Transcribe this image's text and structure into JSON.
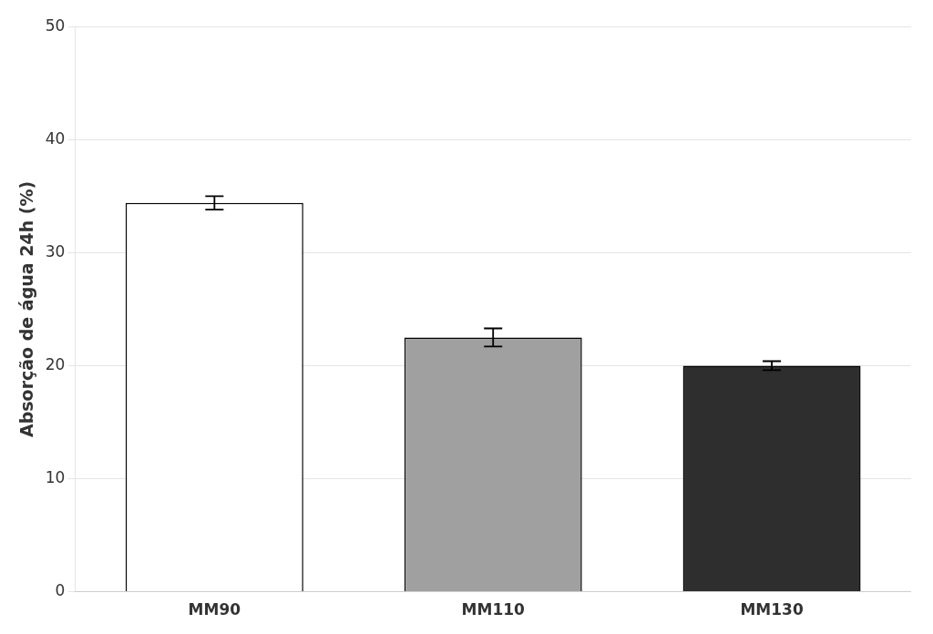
{
  "chart_data": {
    "type": "bar",
    "categories": [
      "MM90",
      "MM110",
      "MM130"
    ],
    "values": [
      34.4,
      22.5,
      20.0
    ],
    "errors": [
      0.6,
      0.8,
      0.4
    ],
    "colors": [
      "#ffffff",
      "#a0a0a0",
      "#2e2e2e"
    ],
    "ylabel": "Absorção de água 24h (%)",
    "ylim": [
      0,
      50
    ],
    "yticks": [
      0,
      10,
      20,
      30,
      40,
      50
    ],
    "grid": true
  }
}
